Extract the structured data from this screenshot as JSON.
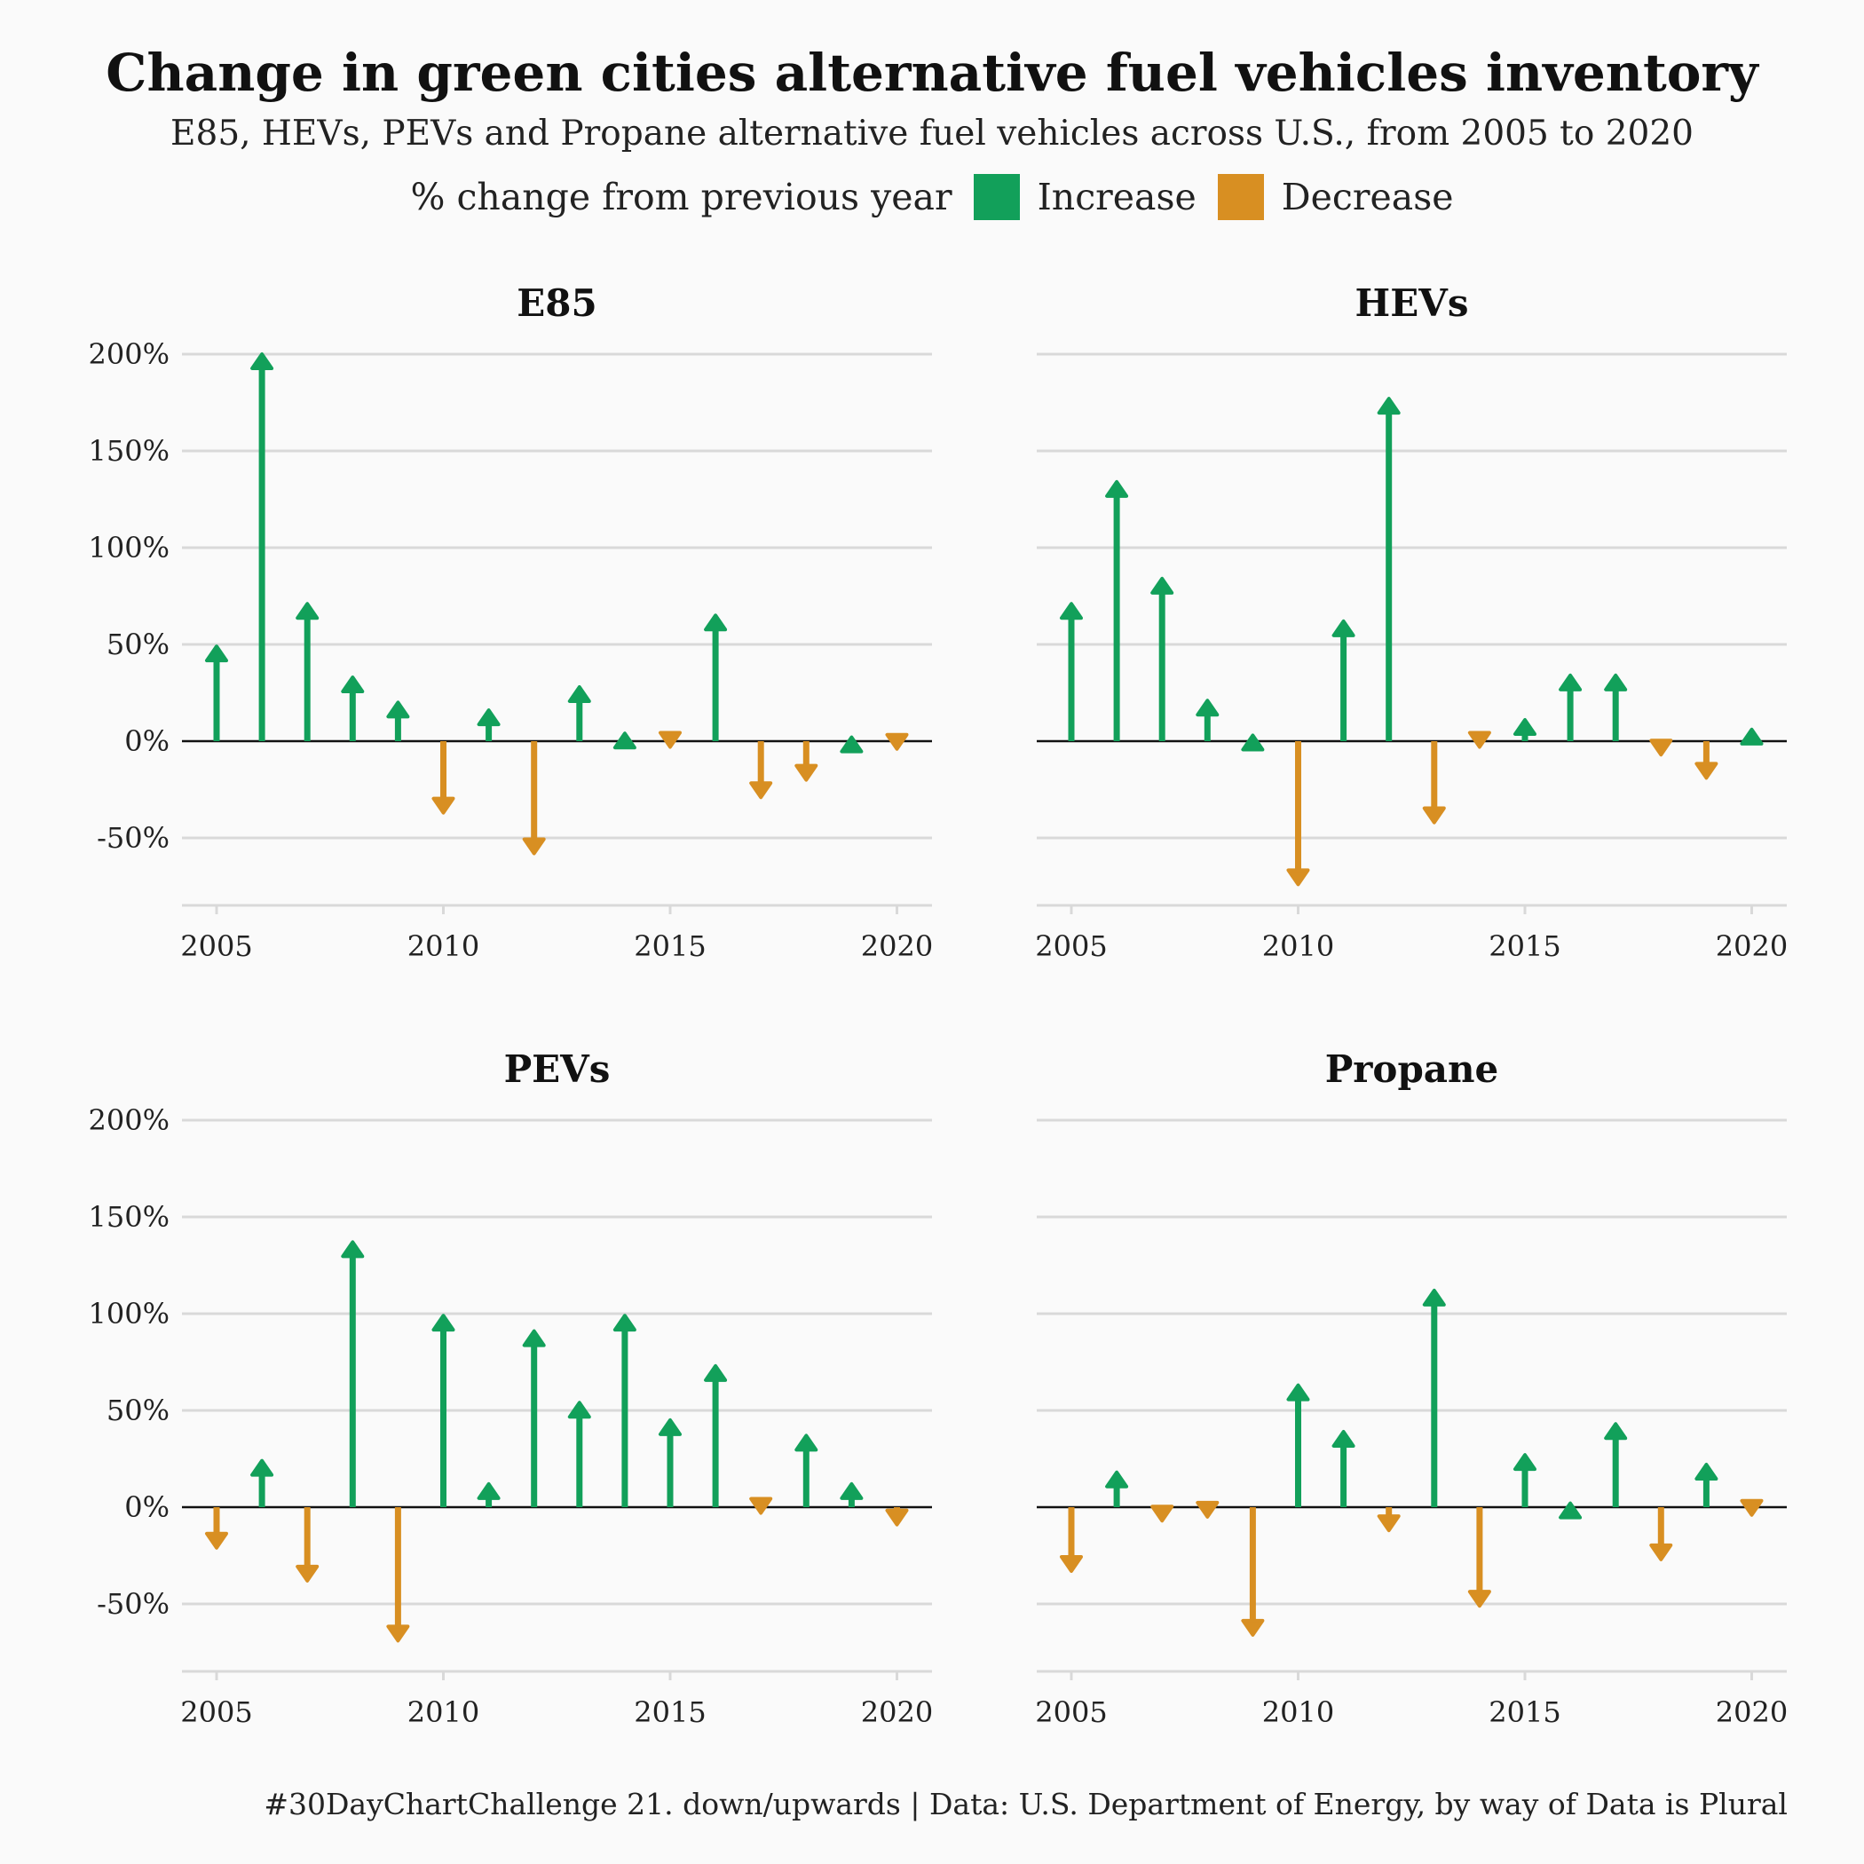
{
  "title": "Change in green cities alternative fuel vehicles inventory",
  "subtitle": "E85, HEVs, PEVs and Propane alternative fuel vehicles across U.S., from 2005 to 2020",
  "legend": {
    "label": "% change from previous year",
    "increase": "Increase",
    "decrease": "Decrease"
  },
  "caption": "#30DayChartChallenge  21. down/upwards |  Data: U.S. Department of Energy, by way of Data is Plural",
  "colors": {
    "increase": "#12a05a",
    "decrease": "#d88f22",
    "grid": "#d9d9d9",
    "zero": "#111111"
  },
  "chart_data": [
    {
      "type": "bar",
      "title": "E85",
      "x": [
        2005,
        2006,
        2007,
        2008,
        2009,
        2010,
        2011,
        2012,
        2013,
        2014,
        2015,
        2016,
        2017,
        2018,
        2019,
        2020
      ],
      "values": [
        49,
        200,
        71,
        33,
        20,
        -37,
        16,
        -58,
        28,
        4,
        -3,
        65,
        -29,
        -20,
        2,
        -4
      ],
      "ylim": [
        -85,
        210
      ],
      "yticks": [
        200,
        150,
        100,
        50,
        0,
        -50
      ],
      "ytick_labels": [
        "200%",
        "150%",
        "100%",
        "50%",
        "0%",
        "-50%"
      ],
      "xticks": [
        2005,
        2010,
        2015,
        2020
      ],
      "grid": true
    },
    {
      "type": "bar",
      "title": "HEVs",
      "x": [
        2005,
        2006,
        2007,
        2008,
        2009,
        2010,
        2011,
        2012,
        2013,
        2014,
        2015,
        2016,
        2017,
        2018,
        2019,
        2020
      ],
      "values": [
        71,
        134,
        84,
        21,
        3,
        -74,
        62,
        177,
        -42,
        -3,
        11,
        34,
        34,
        -7,
        -19,
        6
      ],
      "ylim": [
        -85,
        210
      ],
      "yticks": [
        200,
        150,
        100,
        50,
        0,
        -50
      ],
      "ytick_labels": [
        "200%",
        "150%",
        "100%",
        "50%",
        "0%",
        "-50%"
      ],
      "xticks": [
        2005,
        2010,
        2015,
        2020
      ],
      "grid": true
    },
    {
      "type": "bar",
      "title": "PEVs",
      "x": [
        2005,
        2006,
        2007,
        2008,
        2009,
        2010,
        2011,
        2012,
        2013,
        2014,
        2015,
        2016,
        2017,
        2018,
        2019,
        2020
      ],
      "values": [
        -21,
        24,
        -38,
        137,
        -69,
        99,
        12,
        91,
        54,
        99,
        45,
        73,
        -3,
        37,
        12,
        -9
      ],
      "ylim": [
        -85,
        210
      ],
      "yticks": [
        200,
        150,
        100,
        50,
        0,
        -50
      ],
      "ytick_labels": [
        "200%",
        "150%",
        "100%",
        "50%",
        "0%",
        "-50%"
      ],
      "xticks": [
        2005,
        2010,
        2015,
        2020
      ],
      "grid": true
    },
    {
      "type": "bar",
      "title": "Propane",
      "x": [
        2005,
        2006,
        2007,
        2008,
        2009,
        2010,
        2011,
        2012,
        2013,
        2014,
        2015,
        2016,
        2017,
        2018,
        2019,
        2020
      ],
      "values": [
        -33,
        18,
        -7,
        -5,
        -66,
        63,
        39,
        -12,
        112,
        -51,
        27,
        2,
        43,
        -27,
        22,
        -4
      ],
      "ylim": [
        -85,
        210
      ],
      "yticks": [
        200,
        150,
        100,
        50,
        0,
        -50
      ],
      "ytick_labels": [
        "200%",
        "150%",
        "100%",
        "50%",
        "0%",
        "-50%"
      ],
      "xticks": [
        2005,
        2010,
        2015,
        2020
      ],
      "grid": true
    }
  ]
}
